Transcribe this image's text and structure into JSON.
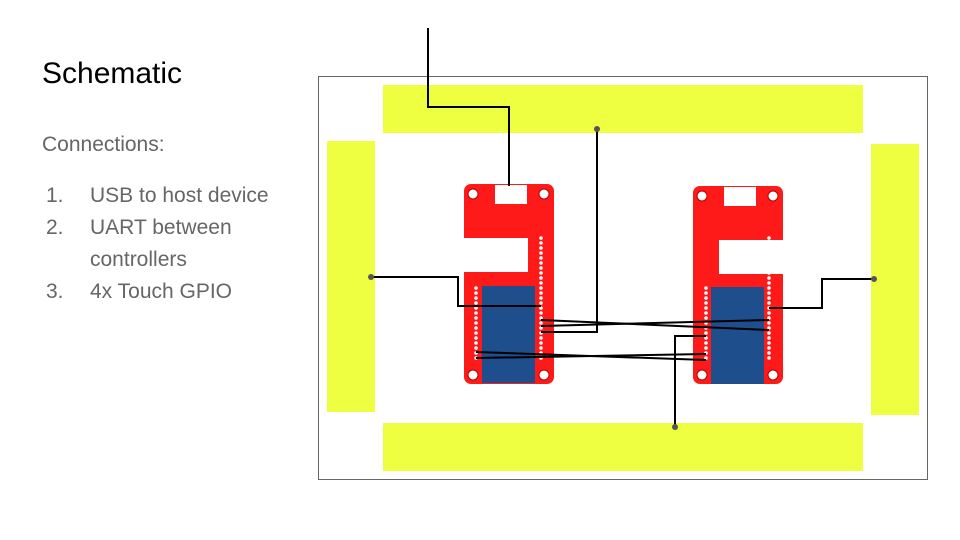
{
  "slide": {
    "title": "Schematic",
    "subtitle": "Connections:",
    "items": [
      {
        "num": "1.",
        "text": "USB to host device"
      },
      {
        "num": "2.",
        "text": "UART between controllers"
      },
      {
        "num": "3.",
        "text": "4x Touch GPIO"
      }
    ]
  },
  "colors": {
    "touch_pad": "#eeff41",
    "board": "#ff1a1a",
    "module": "#1f4e8c",
    "wire": "#000000",
    "frame": "#666666"
  }
}
